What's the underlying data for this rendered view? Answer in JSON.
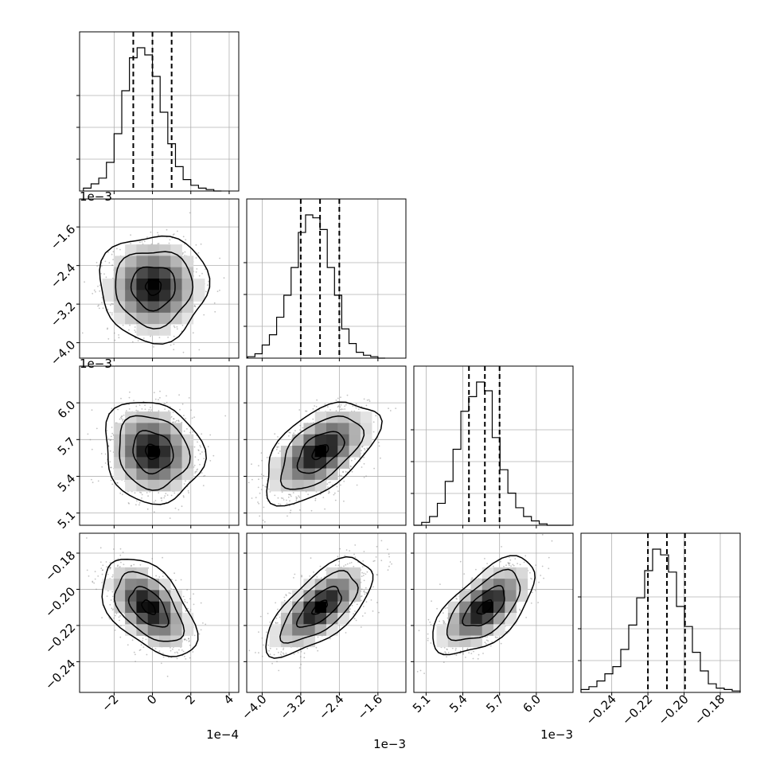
{
  "chart_data": {
    "type": "corner",
    "grid": true,
    "parameters": [
      {
        "range": [
          -3.8,
          4.5
        ],
        "ticks": [
          -2,
          0,
          2,
          4
        ],
        "tick_labels": [
          "−2",
          "0",
          "2",
          "4"
        ],
        "offset_label": "1e−4",
        "quantiles": [
          -1.0,
          0.0,
          1.0
        ],
        "hist": {
          "start": -3.6,
          "width": 0.4,
          "counts": [
            0.02,
            0.05,
            0.09,
            0.2,
            0.4,
            0.7,
            0.93,
            1.0,
            0.95,
            0.8,
            0.55,
            0.33,
            0.17,
            0.08,
            0.04,
            0.02,
            0.01,
            0.0
          ]
        }
      },
      {
        "range": [
          -4.32,
          -1.02
        ],
        "ticks": [
          -4.0,
          -3.2,
          -2.4,
          -1.6
        ],
        "tick_labels": [
          "−4.0",
          "−3.2",
          "−2.4",
          "−1.6"
        ],
        "offset_label": "1e−3",
        "quantiles": [
          -3.2,
          -2.8,
          -2.4
        ],
        "hist": {
          "start": -4.3,
          "width": 0.15,
          "counts": [
            0.01,
            0.03,
            0.09,
            0.16,
            0.28,
            0.43,
            0.62,
            0.86,
            0.98,
            0.96,
            0.88,
            0.62,
            0.43,
            0.2,
            0.1,
            0.04,
            0.02,
            0.01,
            0.0
          ]
        }
      },
      {
        "range": [
          5.0,
          6.3
        ],
        "ticks": [
          5.1,
          5.4,
          5.7,
          6.0
        ],
        "tick_labels": [
          "5.1",
          "5.4",
          "5.7",
          "6.0"
        ],
        "offset_label": "1e−3",
        "quantiles": [
          5.45,
          5.58,
          5.7
        ],
        "hist": {
          "start": 5.0,
          "width": 0.064,
          "counts": [
            0.0,
            0.02,
            0.06,
            0.15,
            0.3,
            0.52,
            0.78,
            0.88,
            0.98,
            0.92,
            0.6,
            0.38,
            0.22,
            0.12,
            0.06,
            0.03,
            0.01,
            0.0,
            0.0,
            0.0
          ]
        }
      },
      {
        "range": [
          -0.257,
          -0.169
        ],
        "ticks": [
          -0.24,
          -0.22,
          -0.2,
          -0.18
        ],
        "tick_labels": [
          "−0.24",
          "−0.22",
          "−0.20",
          "−0.18"
        ],
        "offset_label": "",
        "quantiles": [
          -0.22,
          -0.2095,
          -0.1995
        ],
        "hist": {
          "start": -0.257,
          "width": 0.0044,
          "counts": [
            0.02,
            0.04,
            0.08,
            0.13,
            0.18,
            0.3,
            0.47,
            0.66,
            0.85,
            1.0,
            0.96,
            0.84,
            0.6,
            0.46,
            0.28,
            0.15,
            0.06,
            0.03,
            0.02,
            0.01
          ]
        }
      }
    ],
    "pairs": [
      {
        "x": 0,
        "y": 1,
        "mean": [
          0.05,
          -2.85
        ],
        "sd": [
          1.15,
          0.45
        ],
        "rho": 0.0
      },
      {
        "x": 0,
        "y": 2,
        "mean": [
          0.0,
          5.6
        ],
        "sd": [
          1.05,
          0.17
        ],
        "rho": -0.12
      },
      {
        "x": 1,
        "y": 2,
        "mean": [
          -2.8,
          5.6
        ],
        "sd": [
          0.48,
          0.17
        ],
        "rho": 0.55
      },
      {
        "x": 0,
        "y": 3,
        "mean": [
          -0.2,
          -0.21
        ],
        "sd": [
          1.0,
          0.011
        ],
        "rho": -0.5
      },
      {
        "x": 1,
        "y": 3,
        "mean": [
          -2.8,
          -0.21
        ],
        "sd": [
          0.45,
          0.011
        ],
        "rho": 0.68
      },
      {
        "x": 2,
        "y": 3,
        "mean": [
          5.58,
          -0.21
        ],
        "sd": [
          0.17,
          0.011
        ],
        "rho": 0.62
      }
    ]
  }
}
